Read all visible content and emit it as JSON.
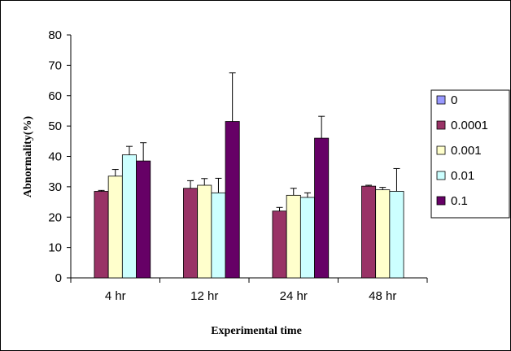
{
  "chart_data": {
    "type": "bar",
    "title": "",
    "xlabel": "Experimental time",
    "ylabel": "Abnormality(%)",
    "ylim": [
      0,
      80
    ],
    "yticks": [
      0,
      10,
      20,
      30,
      40,
      50,
      60,
      70,
      80
    ],
    "categories": [
      "4 hr",
      "12 hr",
      "24 hr",
      "48 hr"
    ],
    "series": [
      {
        "name": "0",
        "color": "#9999ff",
        "values": [
          0,
          0,
          0,
          0
        ],
        "errors": [
          0,
          0,
          0,
          0
        ]
      },
      {
        "name": "0.0001",
        "color": "#993366",
        "values": [
          28.5,
          29.5,
          22,
          30.2
        ],
        "errors": [
          0.3,
          2.5,
          1.2,
          0.3
        ]
      },
      {
        "name": "0.001",
        "color": "#ffffcc",
        "values": [
          33.5,
          30.5,
          27.2,
          29
        ],
        "errors": [
          2.2,
          2.2,
          2.3,
          0.8
        ]
      },
      {
        "name": "0.01",
        "color": "#ccffff",
        "values": [
          40.5,
          28,
          26.5,
          28.5
        ],
        "errors": [
          2.8,
          4.8,
          1.5,
          7.5
        ]
      },
      {
        "name": "0.1",
        "color": "#660066",
        "values": [
          38.5,
          51.5,
          46,
          0
        ],
        "errors": [
          6,
          16,
          7.2,
          0
        ]
      }
    ],
    "grid": false,
    "legend_position": "right"
  }
}
